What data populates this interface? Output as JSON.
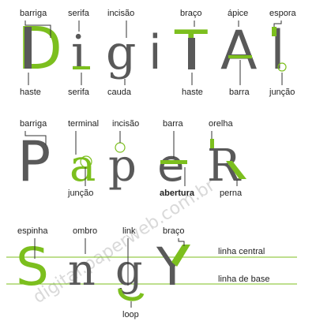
{
  "colors": {
    "primary": "#595959",
    "accent": "#7cbf1e",
    "label": "#222222",
    "watermark": "#d9d9d9"
  },
  "watermark": "digital.paperweb.com.br",
  "rows": [
    {
      "word": [
        "D",
        "i",
        "g",
        "i",
        "T",
        "A",
        "l"
      ],
      "top_labels": [
        "barriga",
        "serifa",
        "incisão",
        "braço",
        "ápice",
        "espora"
      ],
      "bottom_labels": [
        "haste",
        "serifa",
        "cauda",
        "haste",
        "barra",
        "junção"
      ]
    },
    {
      "word": [
        "P",
        "a",
        "p",
        "e",
        "R"
      ],
      "top_labels": [
        "barriga",
        "terminal",
        "incisão",
        "barra",
        "orelha"
      ],
      "bottom_labels": [
        "junção",
        "abertura",
        "perna"
      ]
    },
    {
      "word": [
        "S",
        "n",
        "g",
        "Y"
      ],
      "top_labels": [
        "espinha",
        "ombro",
        "link",
        "braço"
      ],
      "bottom_labels": [
        "loop"
      ],
      "guides": [
        "linha central",
        "linha de base"
      ]
    }
  ]
}
